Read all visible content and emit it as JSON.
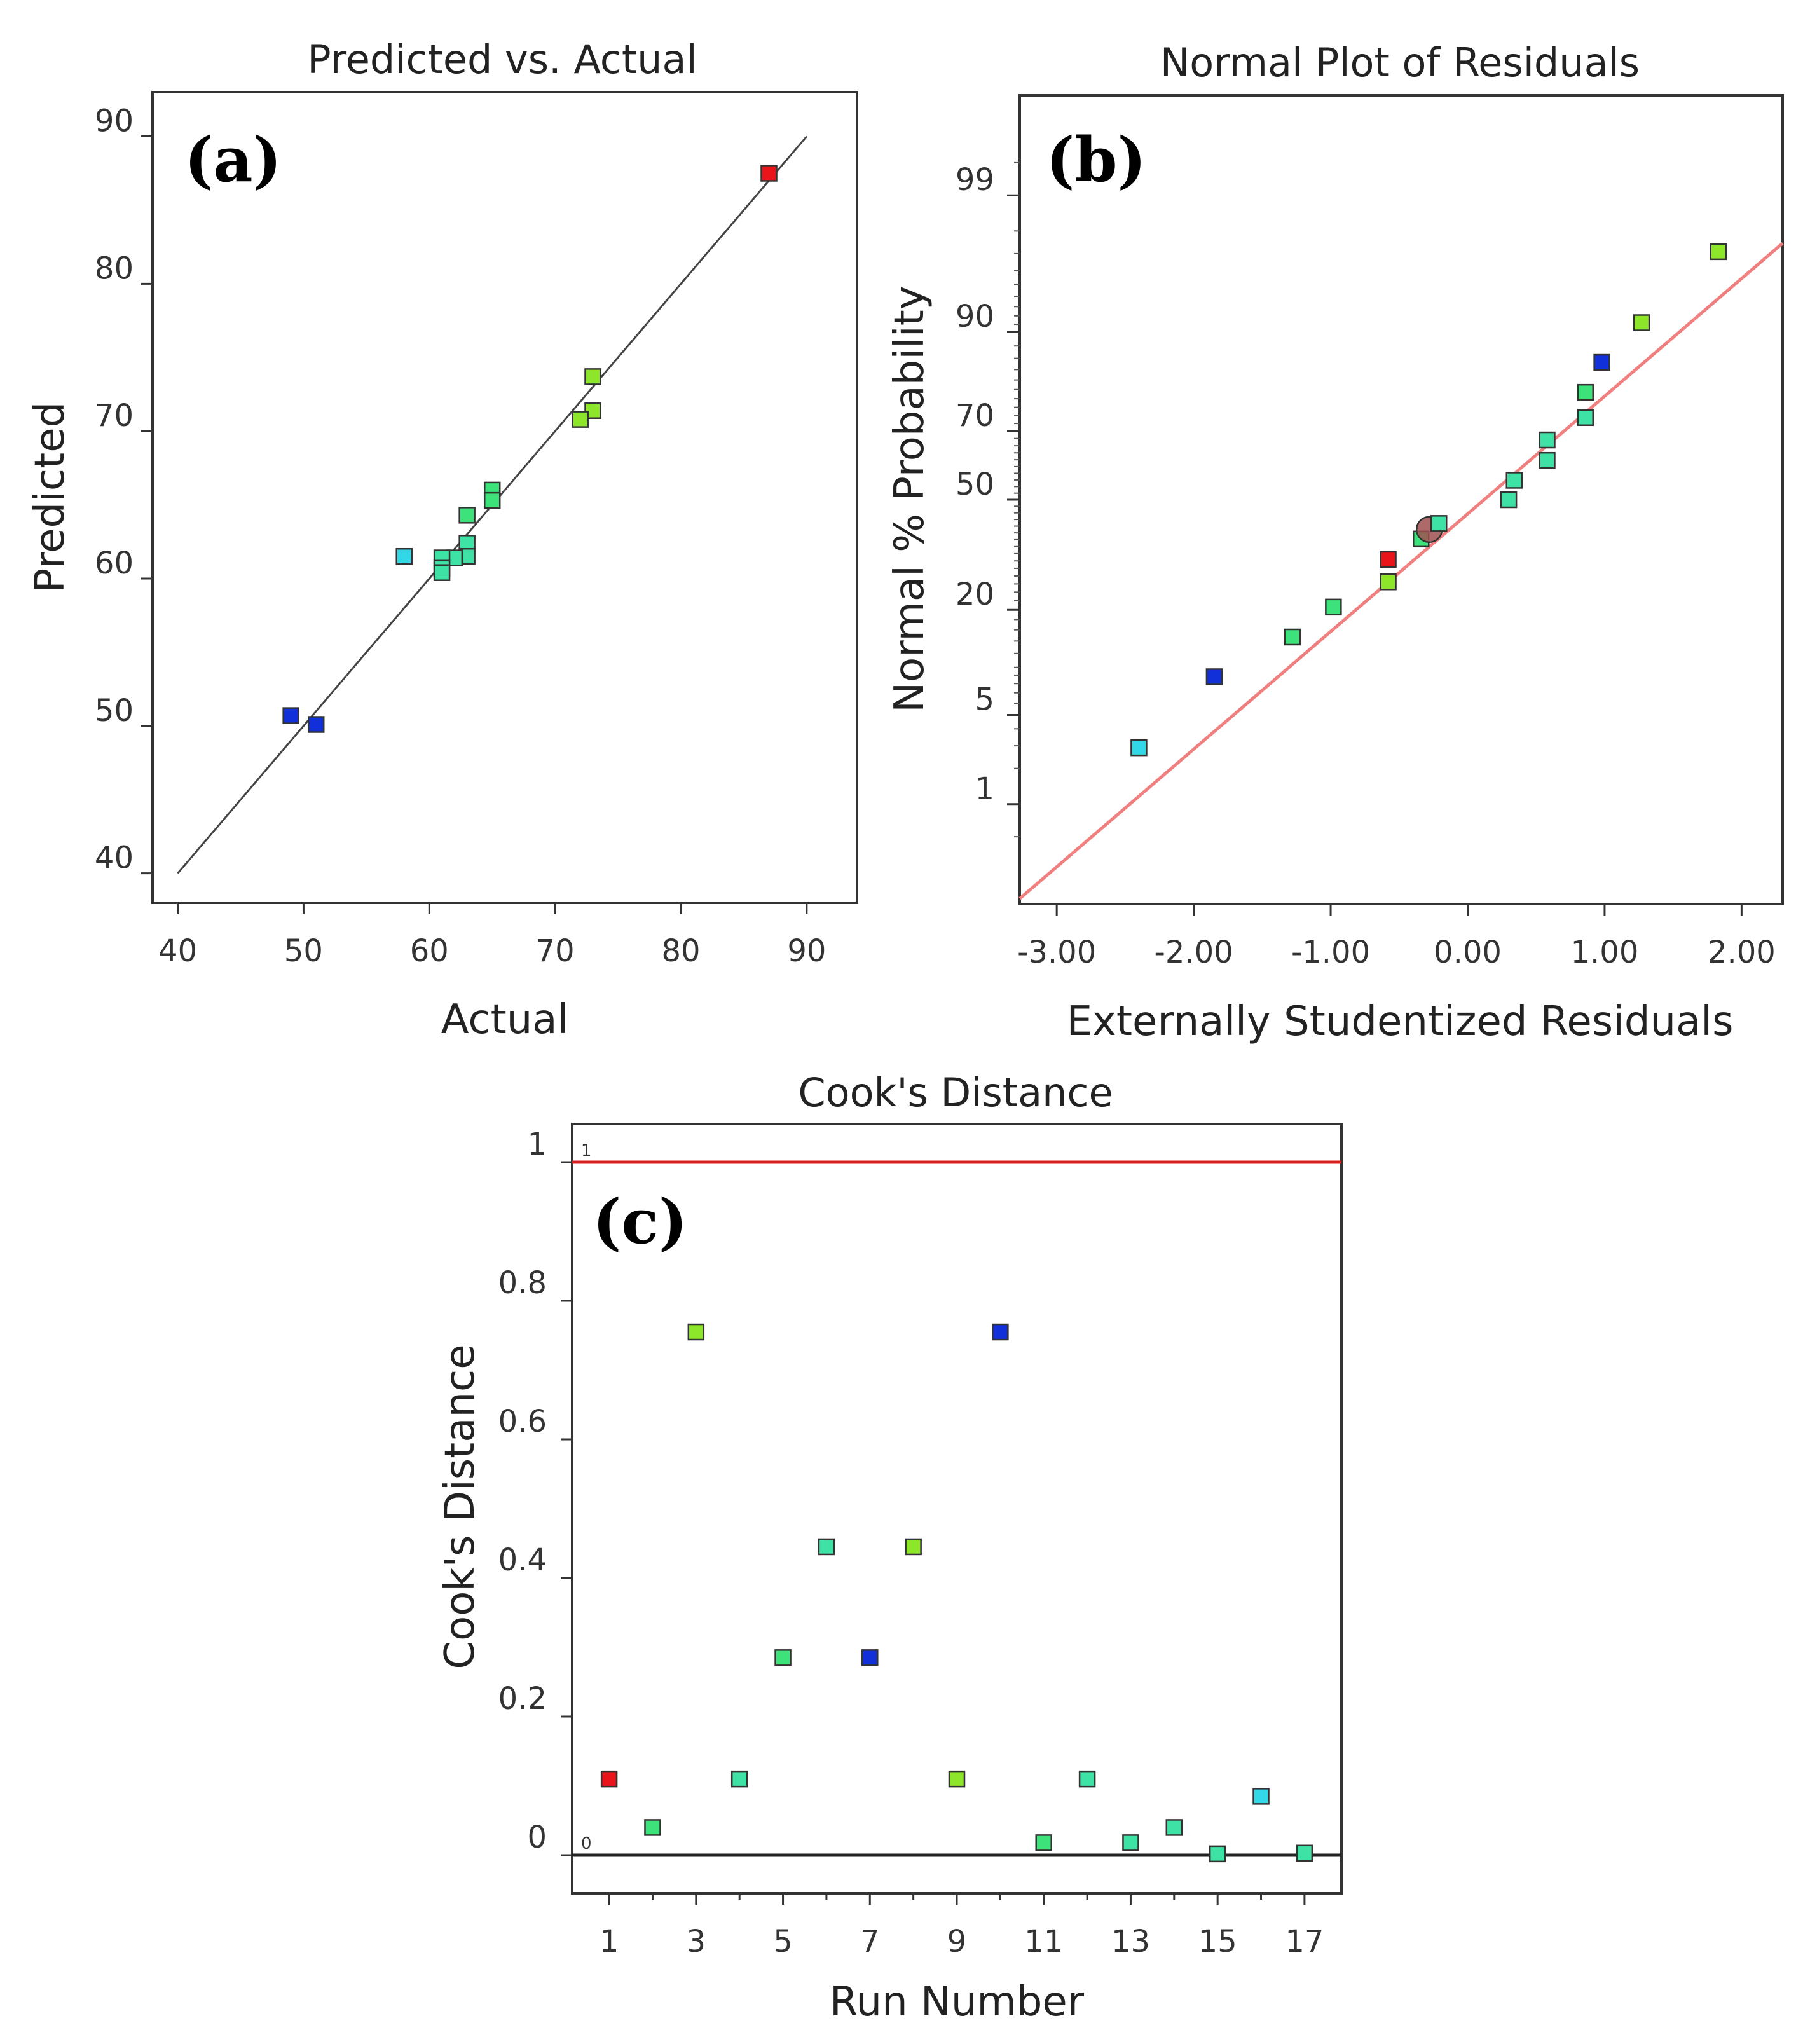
{
  "chart_data": [
    {
      "type": "scatter",
      "panel_label": "(a)",
      "title": "Predicted vs. Actual",
      "xlabel": "Actual",
      "ylabel": "Predicted",
      "xlim": [
        38,
        94
      ],
      "ylim": [
        38,
        93
      ],
      "xticks": [
        "40",
        "50",
        "60",
        "70",
        "80",
        "90"
      ],
      "yticks": [
        "40",
        "50",
        "60",
        "70",
        "80",
        "90"
      ],
      "reference_line": {
        "from": [
          40,
          40
        ],
        "to": [
          90,
          90
        ],
        "color": "#444444"
      },
      "points": [
        {
          "x": 87,
          "y": 87.5,
          "color": "#e8141a"
        },
        {
          "x": 73,
          "y": 73.7,
          "color": "#8ee62a"
        },
        {
          "x": 73,
          "y": 71.4,
          "color": "#8ee62a"
        },
        {
          "x": 72,
          "y": 70.8,
          "color": "#8ee62a"
        },
        {
          "x": 65,
          "y": 66.0,
          "color": "#3de27a"
        },
        {
          "x": 65,
          "y": 65.3,
          "color": "#3de27a"
        },
        {
          "x": 63,
          "y": 64.3,
          "color": "#3de27a"
        },
        {
          "x": 63,
          "y": 62.4,
          "color": "#3de2a4"
        },
        {
          "x": 63,
          "y": 61.5,
          "color": "#3de2a4"
        },
        {
          "x": 62,
          "y": 61.4,
          "color": "#3de2a4"
        },
        {
          "x": 61,
          "y": 61.4,
          "color": "#3de2a4"
        },
        {
          "x": 61,
          "y": 60.7,
          "color": "#3de2a4"
        },
        {
          "x": 61,
          "y": 60.4,
          "color": "#3de2a4"
        },
        {
          "x": 58,
          "y": 61.5,
          "color": "#33d8e8"
        },
        {
          "x": 49,
          "y": 50.7,
          "color": "#1130d9"
        },
        {
          "x": 51,
          "y": 50.1,
          "color": "#1130d9"
        }
      ]
    },
    {
      "type": "scatter",
      "panel_label": "(b)",
      "title": "Normal Plot of Residuals",
      "xlabel": "Externally Studentized Residuals",
      "ylabel": "Normal % Probability",
      "xlim": [
        -3.27,
        2.3
      ],
      "ylim_probability": [
        0.1,
        99.9
      ],
      "xticks": [
        "-3.00",
        "-2.00",
        "-1.00",
        "0.00",
        "1.00",
        "2.00"
      ],
      "yticks": [
        "1",
        "5",
        "20",
        "50",
        "70",
        "90",
        "99"
      ],
      "reference_line": {
        "from": [
          -3.27,
          0.115
        ],
        "to": [
          2.3,
          97.5
        ],
        "color": "#f08080"
      },
      "points": [
        {
          "x": -2.4,
          "p": 2.9,
          "color": "#33d8e8"
        },
        {
          "x": -1.85,
          "p": 8.8,
          "color": "#1130d9"
        },
        {
          "x": -1.28,
          "p": 14.7,
          "color": "#3de27a"
        },
        {
          "x": -0.98,
          "p": 20.6,
          "color": "#3de27a"
        },
        {
          "x": -0.58,
          "p": 26.5,
          "color": "#8ee62a"
        },
        {
          "x": -0.58,
          "p": 32.4,
          "color": "#e8141a"
        },
        {
          "x": -0.34,
          "p": 38.2,
          "color": "#3de27a"
        },
        {
          "x": -0.28,
          "p": 41.0,
          "color": "#a05050",
          "shape": "circle"
        },
        {
          "x": -0.21,
          "p": 42.8,
          "color": "#3de2a4"
        },
        {
          "x": 0.3,
          "p": 50.0,
          "color": "#3de2a4"
        },
        {
          "x": 0.34,
          "p": 55.9,
          "color": "#3de2a4"
        },
        {
          "x": 0.58,
          "p": 61.8,
          "color": "#3de2a4"
        },
        {
          "x": 0.58,
          "p": 67.6,
          "color": "#3de2a4"
        },
        {
          "x": 0.86,
          "p": 73.5,
          "color": "#3de2a4"
        },
        {
          "x": 0.86,
          "p": 79.4,
          "color": "#3de27a"
        },
        {
          "x": 0.98,
          "p": 85.3,
          "color": "#1130d9"
        },
        {
          "x": 1.27,
          "p": 91.2,
          "color": "#8ee62a"
        },
        {
          "x": 1.83,
          "p": 97.1,
          "color": "#8ee62a"
        }
      ]
    },
    {
      "type": "scatter",
      "panel_label": "(c)",
      "title": "Cook's Distance",
      "xlabel": "Run Number",
      "ylabel": "Cook's Distance",
      "xlim": [
        0.15,
        17.85
      ],
      "ylim": [
        -0.055,
        1.055
      ],
      "xticks": [
        "1",
        "3",
        "5",
        "7",
        "9",
        "11",
        "13",
        "15",
        "17"
      ],
      "yticks": [
        "0",
        "0.2",
        "0.4",
        "0.6",
        "0.8",
        "1"
      ],
      "limit_lines": [
        {
          "y": 1,
          "label": "1",
          "color": "#d62020"
        },
        {
          "y": 0,
          "label": "0",
          "color": "#222222"
        }
      ],
      "points": [
        {
          "x": 1,
          "y": 0.11,
          "color": "#e8141a"
        },
        {
          "x": 2,
          "y": 0.04,
          "color": "#3de27a"
        },
        {
          "x": 3,
          "y": 0.755,
          "color": "#8ee62a"
        },
        {
          "x": 4,
          "y": 0.11,
          "color": "#3de2a4"
        },
        {
          "x": 5,
          "y": 0.285,
          "color": "#3de27a"
        },
        {
          "x": 6,
          "y": 0.445,
          "color": "#3de2a4"
        },
        {
          "x": 7,
          "y": 0.285,
          "color": "#1130d9"
        },
        {
          "x": 8,
          "y": 0.445,
          "color": "#8ee62a"
        },
        {
          "x": 9,
          "y": 0.11,
          "color": "#8ee62a"
        },
        {
          "x": 10,
          "y": 0.755,
          "color": "#1130d9"
        },
        {
          "x": 11,
          "y": 0.018,
          "color": "#3de27a"
        },
        {
          "x": 12,
          "y": 0.11,
          "color": "#3de2a4"
        },
        {
          "x": 13,
          "y": 0.018,
          "color": "#3de2a4"
        },
        {
          "x": 14,
          "y": 0.04,
          "color": "#3de2a4"
        },
        {
          "x": 15,
          "y": 0.002,
          "color": "#3de2a4"
        },
        {
          "x": 16,
          "y": 0.085,
          "color": "#33d8e8"
        },
        {
          "x": 17,
          "y": 0.003,
          "color": "#3de2a4"
        }
      ]
    }
  ]
}
